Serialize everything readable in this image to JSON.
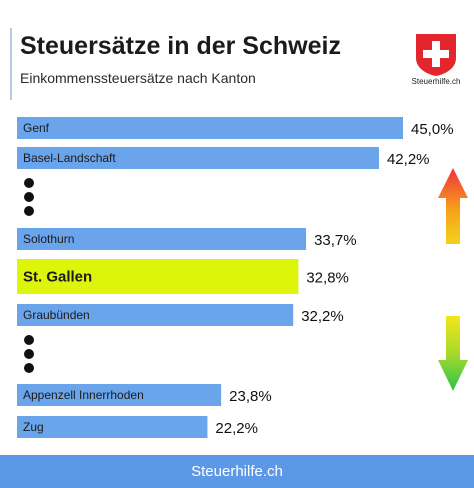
{
  "header": {
    "title": "Steuersätze in der Schweiz",
    "subtitle": "Einkommenssteuersätze nach Kanton"
  },
  "logo": {
    "text": "Steuerhilfe.ch",
    "icon": "swiss-cross-icon",
    "color": "#e3262d"
  },
  "footer": {
    "text": "Steuerhilfe.ch"
  },
  "colors": {
    "bar": "#6aa4ea",
    "highlight": "#ddf40b",
    "footer": "#5b98e6"
  },
  "chart_data": {
    "type": "bar",
    "orientation": "horizontal",
    "title": "Steuersätze in der Schweiz",
    "subtitle": "Einkommenssteuersätze nach Kanton",
    "categories": [
      "Genf",
      "Basel-Landschaft",
      "Solothurn",
      "St. Gallen",
      "Graubünden",
      "Appenzell Innerrhoden",
      "Zug"
    ],
    "values": [
      45.0,
      42.2,
      33.7,
      32.8,
      32.2,
      23.8,
      22.2
    ],
    "value_labels": [
      "45,0%",
      "42,2%",
      "33,7%",
      "32,8%",
      "32,2%",
      "23,8%",
      "22,2%"
    ],
    "highlight": "St. Gallen",
    "grid": false,
    "legend": "none",
    "arrows": [
      "up",
      "down"
    ]
  }
}
